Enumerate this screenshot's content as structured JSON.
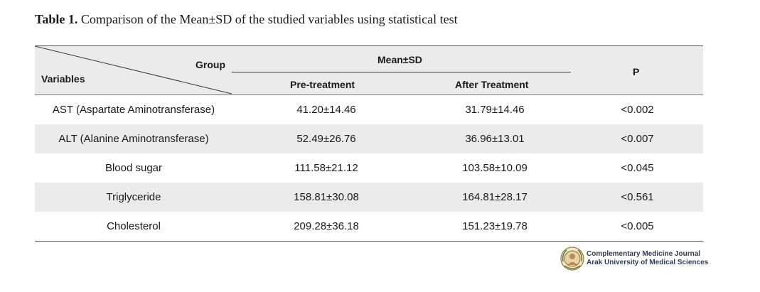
{
  "caption": {
    "label": "Table 1.",
    "text": "Comparison of the Mean±SD of the studied variables using statistical test"
  },
  "table": {
    "headers": {
      "group": "Group",
      "variables": "Variables",
      "mean_sd": "Mean±SD",
      "pre": "Pre-treatment",
      "after": "After Treatment",
      "p": "P"
    },
    "rows": [
      {
        "variable": "AST (Aspartate Aminotransferase)",
        "pre": "41.20±14.46",
        "after": "31.79±14.46",
        "p": "<0.002"
      },
      {
        "variable": "ALT (Alanine Aminotransferase)",
        "pre": "52.49±26.76",
        "after": "36.96±13.01",
        "p": "<0.007"
      },
      {
        "variable": "Blood sugar",
        "pre": "111.58±21.12",
        "after": "103.58±10.09",
        "p": "<0.045"
      },
      {
        "variable": "Triglyceride",
        "pre": "158.81±30.08",
        "after": "164.81±28.17",
        "p": "<0.561"
      },
      {
        "variable": "Cholesterol",
        "pre": "209.28±36.18",
        "after": "151.23±19.78",
        "p": "<0.005"
      }
    ]
  },
  "footer_logo": {
    "line1": "Complementary Medicine Journal",
    "line2": "Arak University of Medical Sciences",
    "icon": "journal-seal-icon"
  }
}
